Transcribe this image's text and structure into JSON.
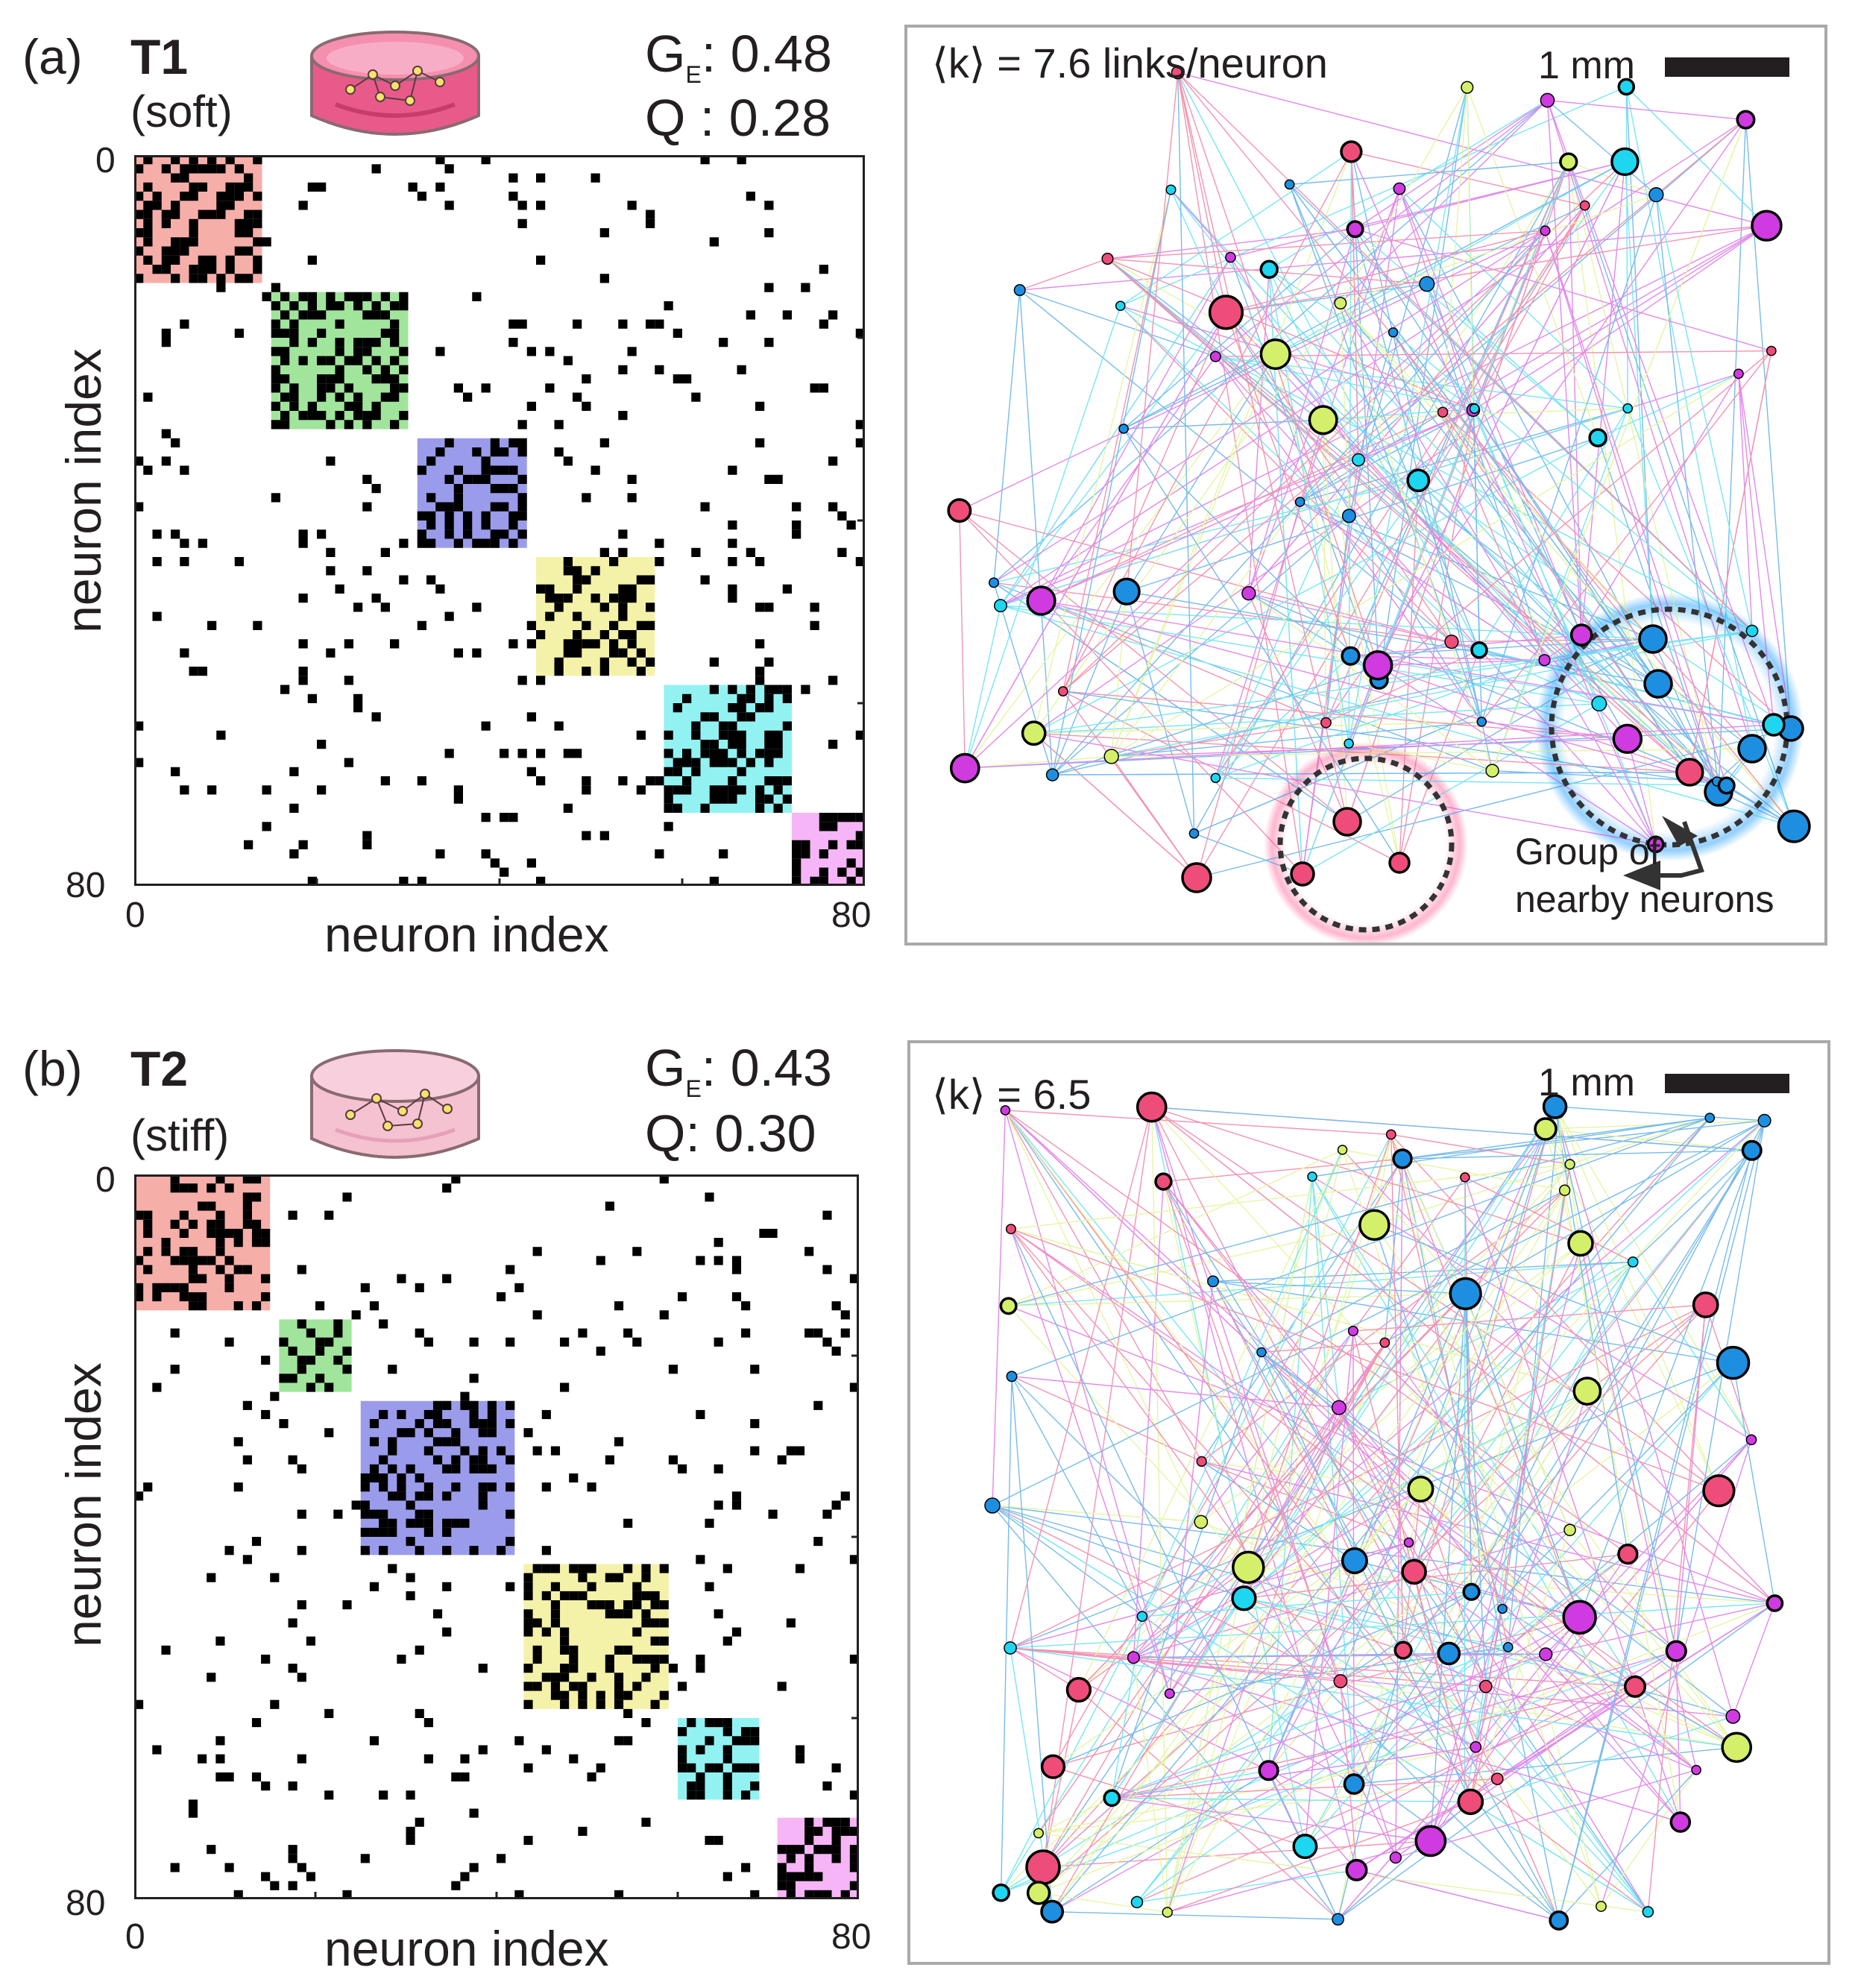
{
  "figure": {
    "panels": [
      {
        "id": "a",
        "panel_label": "(a)",
        "title": "T1",
        "subtitle": "(soft)",
        "ge_symbol": "G",
        "ge_subscript": "E",
        "ge_value": ": 0.48",
        "q_label": "Q : 0.28",
        "matrix": {
          "axis_start": "0",
          "axis_end": "80",
          "xlabel": "neuron index",
          "ylabel": "neuron index",
          "communities": [
            {
              "start": 0,
              "size": 14,
              "color": "#f4a09a"
            },
            {
              "start": 15,
              "size": 15,
              "color": "#8fe08a"
            },
            {
              "start": 31,
              "size": 12,
              "color": "#8a8ae8"
            },
            {
              "start": 44,
              "size": 13,
              "color": "#f2f09a"
            },
            {
              "start": 58,
              "size": 14,
              "color": "#7ff0f0"
            },
            {
              "start": 72,
              "size": 8,
              "color": "#f5a8f5"
            }
          ]
        },
        "network": {
          "k_label": "⟨k⟩ = 7.6 links/neuron",
          "scale_label": "1 mm",
          "annotation": [
            "Group of",
            "nearby neurons"
          ],
          "node_count": 82
        }
      },
      {
        "id": "b",
        "panel_label": "(b)",
        "title": "T2",
        "subtitle": "(stiff)",
        "ge_symbol": "G",
        "ge_subscript": "E",
        "ge_value": ": 0.43",
        "q_label": "Q: 0.30",
        "matrix": {
          "axis_start": "0",
          "axis_end": "80",
          "xlabel": "neuron index",
          "ylabel": "neuron index",
          "communities": [
            {
              "start": 0,
              "size": 15,
              "color": "#f4a09a"
            },
            {
              "start": 16,
              "size": 8,
              "color": "#8fe08a"
            },
            {
              "start": 25,
              "size": 17,
              "color": "#8a8ae8"
            },
            {
              "start": 43,
              "size": 16,
              "color": "#f2f09a"
            },
            {
              "start": 60,
              "size": 9,
              "color": "#7ff0f0"
            },
            {
              "start": 71,
              "size": 9,
              "color": "#f5a8f5"
            }
          ]
        },
        "network": {
          "k_label": "⟨k⟩ = 6.5",
          "scale_label": "1 mm",
          "node_count": 88
        }
      }
    ],
    "colors": {
      "pink": "#ee4d7a",
      "green": "#d4f06a",
      "violet": "#cf3be0",
      "cyan": "#1fd6f0",
      "blue": "#1e8fe0"
    }
  }
}
